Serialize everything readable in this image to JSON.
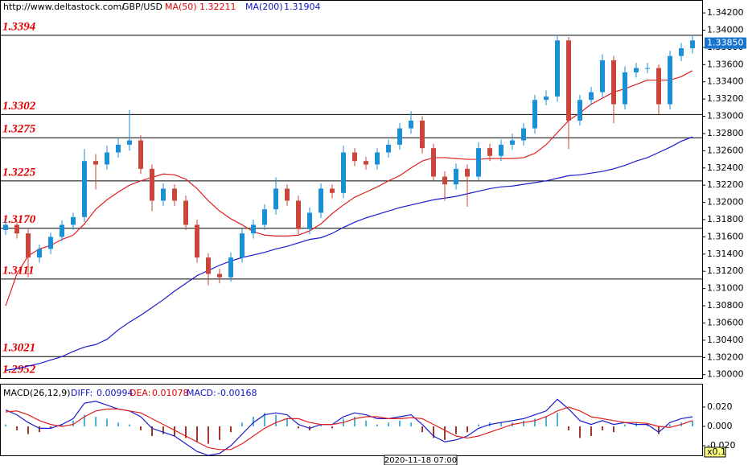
{
  "header": {
    "url": "http://www.deltastock.com/",
    "symbol": "GBP/USD"
  },
  "chart_data": [
    {
      "type": "candlestick",
      "open": [
        1.3168,
        1.3174,
        1.3164,
        1.3136,
        1.3146,
        1.316,
        1.3174,
        1.3183,
        1.3248,
        1.3244,
        1.3258,
        1.3267,
        1.3272,
        1.3239,
        1.3202,
        1.3216,
        1.3202,
        1.3174,
        1.3136,
        1.3117,
        1.3113,
        1.3136,
        1.3164,
        1.3174,
        1.3192,
        1.3216,
        1.3202,
        1.3169,
        1.3188,
        1.3216,
        1.3211,
        1.3258,
        1.3248,
        1.3244,
        1.3258,
        1.3267,
        1.3286,
        1.3295,
        1.3263,
        1.323,
        1.3221,
        1.3239,
        1.323,
        1.3263,
        1.3254,
        1.3267,
        1.3272,
        1.3286,
        1.3319,
        1.3323,
        1.3388,
        1.3295,
        1.3319,
        1.3328,
        1.3365,
        1.3314,
        1.3351,
        1.3356,
        1.3356,
        1.3314,
        1.337,
        1.3379
      ],
      "high": [
        1.3179,
        1.3179,
        1.3169,
        1.3151,
        1.3165,
        1.3179,
        1.3188,
        1.3262,
        1.3256,
        1.3266,
        1.3275,
        1.3307,
        1.3278,
        1.3244,
        1.3222,
        1.3221,
        1.3208,
        1.318,
        1.3141,
        1.3123,
        1.3142,
        1.317,
        1.318,
        1.3198,
        1.3229,
        1.3221,
        1.3208,
        1.3194,
        1.3222,
        1.3221,
        1.3266,
        1.3263,
        1.3253,
        1.3263,
        1.3273,
        1.3292,
        1.3306,
        1.33,
        1.3268,
        1.3236,
        1.3245,
        1.3244,
        1.327,
        1.3268,
        1.3273,
        1.328,
        1.3292,
        1.3325,
        1.333,
        1.3394,
        1.3392,
        1.3325,
        1.3334,
        1.3372,
        1.337,
        1.3358,
        1.3362,
        1.3362,
        1.336,
        1.3376,
        1.3385,
        1.3394
      ],
      "low": [
        1.3162,
        1.3158,
        1.3113,
        1.313,
        1.314,
        1.3155,
        1.3168,
        1.3177,
        1.3215,
        1.3238,
        1.3252,
        1.326,
        1.3233,
        1.319,
        1.3196,
        1.3196,
        1.3168,
        1.313,
        1.3104,
        1.3106,
        1.3108,
        1.313,
        1.3158,
        1.3168,
        1.3186,
        1.3196,
        1.3163,
        1.3163,
        1.3182,
        1.3205,
        1.3205,
        1.3242,
        1.3238,
        1.3238,
        1.3252,
        1.3261,
        1.328,
        1.3257,
        1.3224,
        1.3202,
        1.3215,
        1.3195,
        1.3224,
        1.3248,
        1.3248,
        1.3261,
        1.3266,
        1.328,
        1.3313,
        1.3317,
        1.3262,
        1.3289,
        1.3313,
        1.3322,
        1.3292,
        1.3308,
        1.3345,
        1.335,
        1.3302,
        1.3308,
        1.3364,
        1.3373
      ],
      "close": [
        1.3174,
        1.3164,
        1.3136,
        1.3146,
        1.316,
        1.3174,
        1.3183,
        1.3248,
        1.3244,
        1.3258,
        1.3267,
        1.3272,
        1.3239,
        1.3202,
        1.3216,
        1.3202,
        1.3174,
        1.3136,
        1.3117,
        1.3113,
        1.3136,
        1.3164,
        1.3174,
        1.3192,
        1.3216,
        1.3202,
        1.3169,
        1.3188,
        1.3216,
        1.3211,
        1.3258,
        1.3248,
        1.3244,
        1.3258,
        1.3267,
        1.3286,
        1.3295,
        1.3263,
        1.323,
        1.3221,
        1.3239,
        1.323,
        1.3263,
        1.3254,
        1.3267,
        1.3272,
        1.3286,
        1.3319,
        1.3323,
        1.3388,
        1.3295,
        1.3319,
        1.3328,
        1.3365,
        1.3314,
        1.3351,
        1.3356,
        1.3356,
        1.3314,
        1.337,
        1.3379,
        1.3388
      ],
      "up_color": "#1a8fd6",
      "down_color": "#c8463a",
      "series": [
        {
          "name": "MA(50)",
          "value_label": "1.32211",
          "color": "#e02020",
          "values": [
            1.308,
            1.3117,
            1.3138,
            1.3146,
            1.315,
            1.3157,
            1.3162,
            1.3175,
            1.3192,
            1.3203,
            1.3212,
            1.322,
            1.3225,
            1.3229,
            1.3233,
            1.3232,
            1.3227,
            1.3216,
            1.3202,
            1.319,
            1.3181,
            1.3174,
            1.3166,
            1.3162,
            1.3161,
            1.3161,
            1.3162,
            1.3167,
            1.3175,
            1.3187,
            1.3197,
            1.3206,
            1.3212,
            1.3218,
            1.3225,
            1.3231,
            1.324,
            1.3248,
            1.3252,
            1.3252,
            1.3251,
            1.325,
            1.325,
            1.3251,
            1.3251,
            1.3251,
            1.3252,
            1.3257,
            1.3267,
            1.3281,
            1.3295,
            1.3304,
            1.3314,
            1.3321,
            1.3328,
            1.3332,
            1.3337,
            1.3342,
            1.3342,
            1.3342,
            1.3346,
            1.3353
          ]
        },
        {
          "name": "MA(200)",
          "value_label": "1.31904",
          "color": "#1a1acc",
          "values": [
            1.3005,
            1.3007,
            1.301,
            1.3013,
            1.3017,
            1.3021,
            1.3027,
            1.3032,
            1.3035,
            1.3041,
            1.3052,
            1.3061,
            1.3069,
            1.3078,
            1.3087,
            1.3097,
            1.3106,
            1.3115,
            1.3121,
            1.3127,
            1.3132,
            1.3136,
            1.3139,
            1.3142,
            1.3146,
            1.3149,
            1.3153,
            1.3157,
            1.3159,
            1.3164,
            1.3171,
            1.3177,
            1.3182,
            1.3186,
            1.319,
            1.3194,
            1.3197,
            1.32,
            1.3203,
            1.3205,
            1.3207,
            1.321,
            1.3213,
            1.3216,
            1.3218,
            1.3219,
            1.3221,
            1.3223,
            1.3225,
            1.3228,
            1.3231,
            1.3232,
            1.3234,
            1.3236,
            1.3239,
            1.3243,
            1.3248,
            1.3252,
            1.3258,
            1.3264,
            1.3271,
            1.3276
          ]
        }
      ],
      "ylim": [
        1.2996,
        1.3435
      ],
      "yticks": [
        {
          "value": 1.342,
          "label": "1.34200"
        },
        {
          "value": 1.34,
          "label": "1.34000"
        },
        {
          "value": 1.338,
          "label": "1.33800"
        },
        {
          "value": 1.336,
          "label": "1.33600"
        },
        {
          "value": 1.334,
          "label": "1.33400"
        },
        {
          "value": 1.332,
          "label": "1.33200"
        },
        {
          "value": 1.33,
          "label": "1.33000"
        },
        {
          "value": 1.328,
          "label": "1.32800"
        },
        {
          "value": 1.326,
          "label": "1.32600"
        },
        {
          "value": 1.324,
          "label": "1.32400"
        },
        {
          "value": 1.322,
          "label": "1.32200"
        },
        {
          "value": 1.32,
          "label": "1.32000"
        },
        {
          "value": 1.318,
          "label": "1.31800"
        },
        {
          "value": 1.316,
          "label": "1.31600"
        },
        {
          "value": 1.314,
          "label": "1.31400"
        },
        {
          "value": 1.312,
          "label": "1.31200"
        },
        {
          "value": 1.31,
          "label": "1.31000"
        },
        {
          "value": 1.308,
          "label": "1.30800"
        },
        {
          "value": 1.306,
          "label": "1.30600"
        },
        {
          "value": 1.304,
          "label": "1.30400"
        },
        {
          "value": 1.302,
          "label": "1.30200"
        },
        {
          "value": 1.3,
          "label": "1.30000"
        }
      ],
      "levels": [
        {
          "value": 1.3394,
          "label": "1.3394"
        },
        {
          "value": 1.3302,
          "label": "1.3302"
        },
        {
          "value": 1.3275,
          "label": "1.3275"
        },
        {
          "value": 1.3225,
          "label": "1.3225"
        },
        {
          "value": 1.317,
          "label": "1.3170"
        },
        {
          "value": 1.3111,
          "label": "1.3111"
        },
        {
          "value": 1.3021,
          "label": "1.3021"
        },
        {
          "value": 1.2952,
          "label": "1.2952"
        }
      ],
      "current_price": {
        "value": 1.3385,
        "label": "1.33850"
      },
      "cursor_label": "2020-11-18 07:00"
    },
    {
      "type": "macd",
      "title": "MACD(26,12,9)",
      "series": [
        {
          "name": "DIFF:",
          "value_label": "0.00994",
          "color": "#1a1acc",
          "values": [
            0.017,
            0.012,
            0.004,
            -0.002,
            -0.002,
            0.002,
            0.008,
            0.024,
            0.026,
            0.022,
            0.018,
            0.016,
            0.01,
            -0.002,
            -0.006,
            -0.01,
            -0.018,
            -0.026,
            -0.03,
            -0.028,
            -0.02,
            -0.008,
            0.004,
            0.012,
            0.014,
            0.012,
            0.002,
            -0.002,
            0.002,
            0.002,
            0.01,
            0.014,
            0.012,
            0.008,
            0.008,
            0.01,
            0.012,
            0.002,
            -0.01,
            -0.016,
            -0.014,
            -0.01,
            -0.002,
            0.002,
            0.004,
            0.006,
            0.008,
            0.012,
            0.016,
            0.028,
            0.018,
            0.006,
            0.002,
            0.006,
            0.002,
            0.004,
            0.002,
            0.002,
            -0.006,
            0.004,
            0.008,
            0.01
          ]
        },
        {
          "name": "DEA:",
          "value_label": "0.01078",
          "color": "#e02020",
          "values": [
            0.015,
            0.016,
            0.012,
            0.006,
            0.002,
            0.0,
            0.002,
            0.01,
            0.016,
            0.018,
            0.018,
            0.016,
            0.014,
            0.008,
            0.002,
            -0.004,
            -0.01,
            -0.016,
            -0.022,
            -0.024,
            -0.024,
            -0.018,
            -0.01,
            -0.002,
            0.004,
            0.008,
            0.008,
            0.004,
            0.002,
            0.002,
            0.004,
            0.008,
            0.01,
            0.01,
            0.008,
            0.008,
            0.009,
            0.008,
            0.002,
            -0.004,
            -0.01,
            -0.012,
            -0.01,
            -0.006,
            -0.002,
            0.002,
            0.004,
            0.006,
            0.01,
            0.016,
            0.02,
            0.016,
            0.01,
            0.008,
            0.006,
            0.004,
            0.004,
            0.003,
            0.0,
            -0.001,
            0.002,
            0.006
          ]
        },
        {
          "name": "MACD:",
          "value_label": "-0.00168",
          "color": "#1a1acc",
          "up_color": "#4fb0d8",
          "down_color": "#a0392b",
          "values": [
            0.002,
            -0.004,
            -0.008,
            -0.006,
            -0.002,
            0.002,
            0.006,
            0.012,
            0.01,
            0.008,
            0.004,
            0.002,
            -0.004,
            -0.01,
            -0.008,
            -0.01,
            -0.012,
            -0.016,
            -0.018,
            -0.014,
            -0.006,
            0.004,
            0.01,
            0.014,
            0.012,
            0.008,
            -0.002,
            -0.004,
            0.002,
            -0.002,
            0.008,
            0.01,
            0.006,
            0.002,
            0.004,
            0.006,
            0.004,
            -0.006,
            -0.012,
            -0.014,
            -0.008,
            -0.006,
            0.002,
            0.004,
            0.004,
            0.004,
            0.006,
            0.008,
            0.01,
            0.014,
            -0.004,
            -0.012,
            -0.01,
            -0.004,
            -0.006,
            0.002,
            0.004,
            0.002,
            -0.008,
            0.002,
            0.004,
            0.006
          ]
        }
      ],
      "ylim": [
        -0.0308,
        0.0433
      ],
      "yticks": [
        {
          "value": 0.02,
          "label": "0.020"
        },
        {
          "value": 0,
          "label": "0.000"
        },
        {
          "value": -0.02,
          "label": "-0.020"
        }
      ],
      "scale_label": "x0.1"
    }
  ]
}
